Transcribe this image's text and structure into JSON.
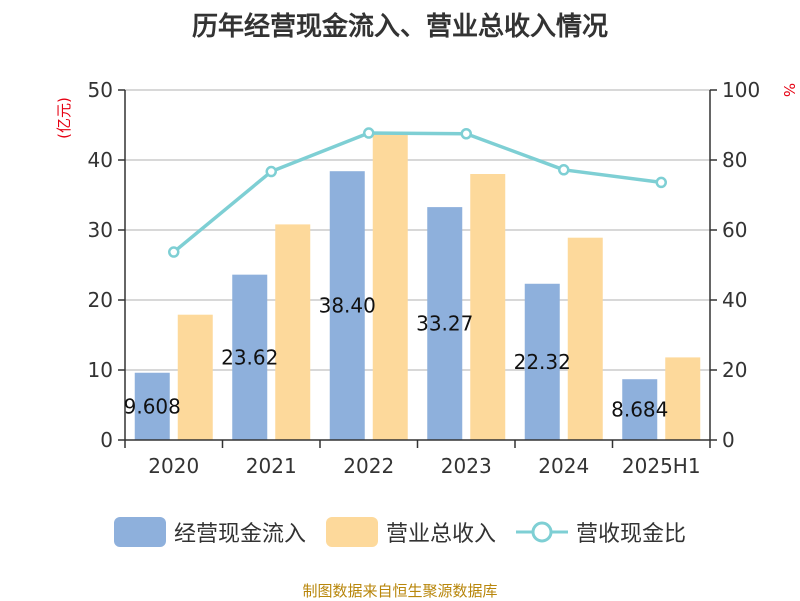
{
  "chart_data": {
    "type": "bar",
    "title": "历年经营现金流入、营业总收入情况",
    "y_left_unit": "(亿元)",
    "y_right_unit": "%",
    "categories": [
      "2020",
      "2021",
      "2022",
      "2023",
      "2024",
      "2025H1"
    ],
    "y_left_range": [
      0,
      50
    ],
    "y_left_ticks": [
      "0",
      "10",
      "20",
      "30",
      "40",
      "50"
    ],
    "y_right_range": [
      0,
      100
    ],
    "y_right_ticks": [
      "0",
      "20",
      "40",
      "60",
      "80",
      "100"
    ],
    "grid": true,
    "legend_position": "bottom",
    "series": [
      {
        "name": "经营现金流入",
        "type": "bar",
        "axis": "left",
        "color": "#8eb0dc",
        "values": [
          9.608,
          23.62,
          38.4,
          33.27,
          22.32,
          8.684
        ],
        "labels": [
          "9.608",
          "23.62",
          "38.40",
          "33.27",
          "22.32",
          "8.684"
        ]
      },
      {
        "name": "营业总收入",
        "type": "bar",
        "axis": "left",
        "color": "#fdd99b",
        "values": [
          17.9,
          30.8,
          43.8,
          38.0,
          28.9,
          11.8
        ]
      },
      {
        "name": "营收现金比",
        "type": "line",
        "axis": "right",
        "color": "#7ecfd4",
        "values": [
          53.7,
          76.7,
          87.7,
          87.5,
          77.2,
          73.6
        ]
      }
    ]
  },
  "source": "制图数据来自恒生聚源数据库"
}
